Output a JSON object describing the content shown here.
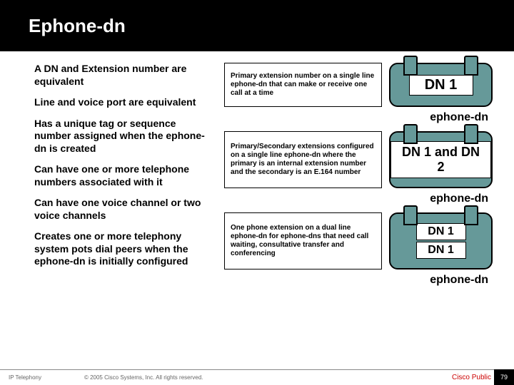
{
  "header": {
    "title": "Ephone-dn"
  },
  "bullets": [
    "A DN and Extension number are equivalent",
    "Line and voice port are equivalent",
    "Has a unique tag or sequence number assigned when the ephone-dn is created",
    "Can have one or more telephone numbers associated with it",
    "Can have one voice channel or two voice channels",
    "Creates one or more telephony system pots dial peers when the ephone-dn is initially configured"
  ],
  "rows": [
    {
      "desc": "Primary extension number on a single line ephone-dn that can make or receive one call at a time",
      "chips": [
        "DN 1"
      ],
      "label": "ephone-dn"
    },
    {
      "desc": "Primary/Secondary extensions configured on a single line ephone-dn where the primary is an internal extension number and the secondary is an E.164 number",
      "chips": [
        "DN 1 and DN 2"
      ],
      "label": "ephone-dn"
    },
    {
      "desc": "One phone extension on a dual line ephone-dn for ephone-dns that need call waiting, consultative transfer and conferencing",
      "chips": [
        "DN 1",
        "DN 1"
      ],
      "label": "ephone-dn"
    }
  ],
  "footer": {
    "left": "IP Telephony",
    "center": "© 2005 Cisco Systems, Inc. All rights reserved.",
    "right": "Cisco Public",
    "page": "79"
  },
  "colors": {
    "header_bg": "#000000",
    "header_text": "#ffffff",
    "phone_fill": "#669999",
    "footer_brand": "#cc0000"
  }
}
